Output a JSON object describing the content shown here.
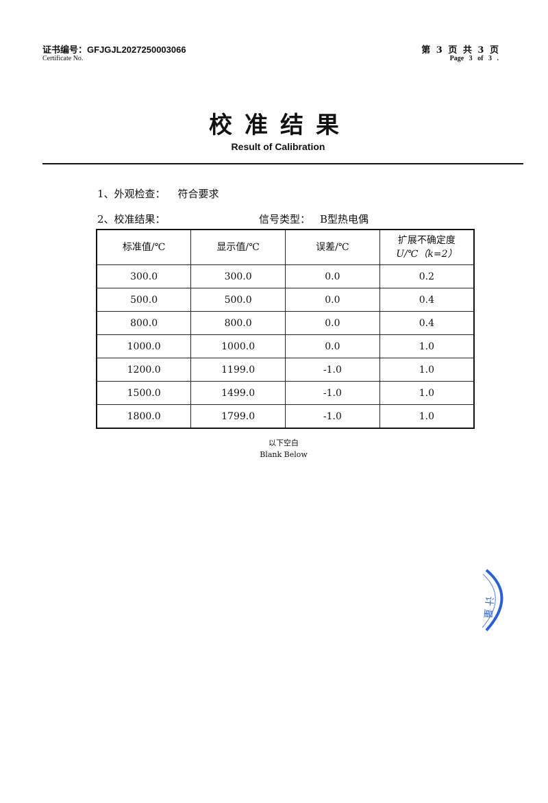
{
  "header": {
    "certificate_label": "证书编号：",
    "certificate_number": "GFJGJL2027250003066",
    "certificate_label_en": "Certificate No.",
    "page_cn": "第 3 页  共 3 页",
    "page_en": "Page 3  of  3  ."
  },
  "title": "校准结果",
  "subtitle": "Result of Calibration",
  "appearance": {
    "label": "1、外观检查：",
    "value": "符合要求"
  },
  "calibration": {
    "label": "2、校准结果：",
    "signal_label": "信号类型：",
    "signal_value": "B型热电偶"
  },
  "table": {
    "headers": [
      "标准值/℃",
      "显示值/℃",
      "误差/℃",
      "扩展不确定度",
      "U/℃（k=2）"
    ],
    "rows": [
      [
        "300.0",
        "300.0",
        "0.0",
        "0.2"
      ],
      [
        "500.0",
        "500.0",
        "0.0",
        "0.4"
      ],
      [
        "800.0",
        "800.0",
        "0.0",
        "0.4"
      ],
      [
        "1000.0",
        "1000.0",
        "0.0",
        "1.0"
      ],
      [
        "1200.0",
        "1199.0",
        "-1.0",
        "1.0"
      ],
      [
        "1500.0",
        "1499.0",
        "-1.0",
        "1.0"
      ],
      [
        "1800.0",
        "1799.0",
        "-1.0",
        "1.0"
      ]
    ]
  },
  "blank_cn": "以下空白",
  "blank_en": "Blank Below",
  "stamp": {
    "color": "#2a5fd6",
    "text": "计量"
  }
}
